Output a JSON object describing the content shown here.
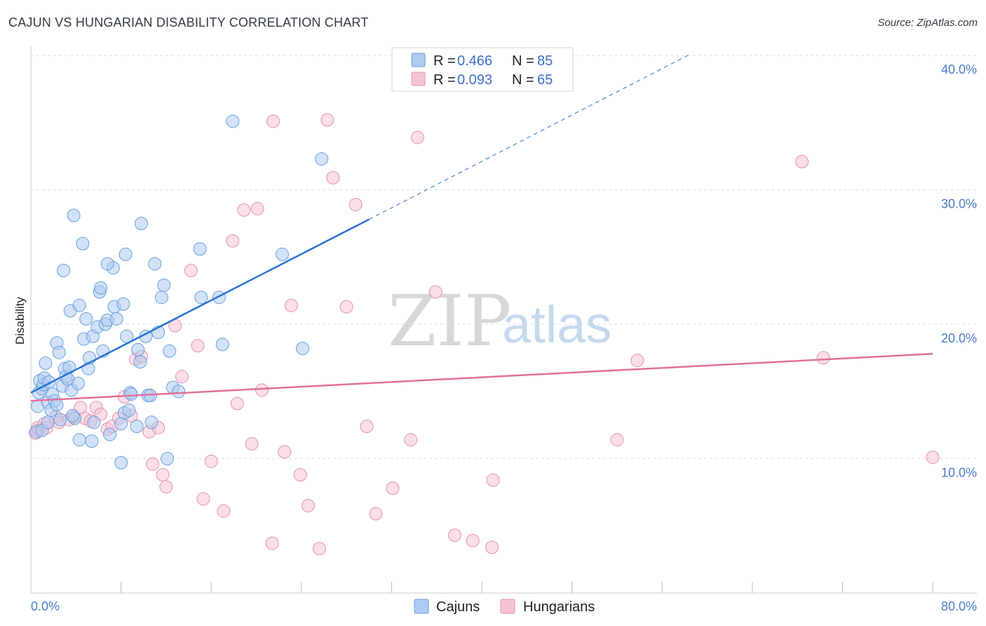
{
  "title": "CAJUN VS HUNGARIAN DISABILITY CORRELATION CHART",
  "source": "Source: ZipAtlas.com",
  "watermark": {
    "zip": "ZIP",
    "atlas": "atlas"
  },
  "colors": {
    "cajun_fill": "#aecbf0",
    "cajun_stroke": "#6b9fdc",
    "cajun_line": "#2a72d4",
    "hungarian_fill": "#f6c3d5",
    "hungarian_stroke": "#e393b2",
    "hungarian_line": "#e0709a",
    "axis_text": "#4a7cc9",
    "grid": "#dddddd"
  },
  "legend": {
    "r_label": "R =",
    "n_label": "N =",
    "cajun_r": "0.466",
    "cajun_n": "85",
    "hungarian_r": "0.093",
    "hungarian_n": "65"
  },
  "bottom_legend": {
    "cajuns": "Cajuns",
    "hungarians": "Hungarians"
  },
  "chart_data": {
    "type": "scatter",
    "title": "CAJUN VS HUNGARIAN DISABILITY CORRELATION CHART",
    "xlabel": "",
    "ylabel": "Disability",
    "xlim": [
      0,
      80
    ],
    "ylim": [
      0,
      40
    ],
    "x_tick_labels": [
      "0.0%",
      "80.0%"
    ],
    "y_ticks": [
      10,
      20,
      30,
      40
    ],
    "y_tick_labels": [
      "10.0%",
      "20.0%",
      "30.0%",
      "40.0%"
    ],
    "series": [
      {
        "name": "Cajuns",
        "r": 0.466,
        "n": 85,
        "trend": {
          "x0": 0,
          "y0": 14.9,
          "x1": 30,
          "y1": 27.8,
          "dashed_to_x": 58.5,
          "dashed_to_y": 40.1
        },
        "points": [
          [
            0.5,
            12.0
          ],
          [
            0.6,
            13.9
          ],
          [
            0.7,
            14.9
          ],
          [
            0.8,
            15.8
          ],
          [
            1.0,
            12.1
          ],
          [
            1.0,
            15.2
          ],
          [
            1.1,
            15.5
          ],
          [
            1.2,
            16.0
          ],
          [
            1.3,
            17.1
          ],
          [
            1.5,
            12.7
          ],
          [
            1.5,
            14.2
          ],
          [
            1.6,
            15.7
          ],
          [
            1.8,
            13.6
          ],
          [
            1.9,
            14.8
          ],
          [
            2.1,
            14.3
          ],
          [
            2.3,
            14.0
          ],
          [
            2.3,
            18.6
          ],
          [
            2.5,
            17.9
          ],
          [
            2.6,
            12.9
          ],
          [
            2.8,
            15.4
          ],
          [
            2.9,
            24.0
          ],
          [
            3.0,
            16.7
          ],
          [
            3.1,
            16.1
          ],
          [
            3.3,
            15.9
          ],
          [
            3.4,
            16.8
          ],
          [
            3.5,
            21.0
          ],
          [
            3.6,
            15.1
          ],
          [
            3.8,
            28.1
          ],
          [
            3.9,
            13.0
          ],
          [
            4.2,
            15.6
          ],
          [
            4.3,
            21.4
          ],
          [
            4.3,
            11.4
          ],
          [
            4.6,
            26.0
          ],
          [
            4.7,
            18.9
          ],
          [
            4.9,
            20.4
          ],
          [
            5.1,
            16.7
          ],
          [
            5.2,
            17.5
          ],
          [
            5.4,
            11.3
          ],
          [
            5.5,
            19.1
          ],
          [
            5.6,
            12.7
          ],
          [
            5.9,
            19.8
          ],
          [
            6.1,
            22.4
          ],
          [
            6.2,
            22.7
          ],
          [
            6.4,
            18.0
          ],
          [
            6.6,
            20.0
          ],
          [
            6.8,
            20.3
          ],
          [
            7.0,
            11.8
          ],
          [
            7.3,
            24.2
          ],
          [
            7.4,
            21.3
          ],
          [
            7.6,
            20.4
          ],
          [
            8.0,
            12.6
          ],
          [
            8.0,
            9.7
          ],
          [
            8.2,
            21.5
          ],
          [
            8.3,
            13.4
          ],
          [
            8.4,
            25.2
          ],
          [
            8.5,
            19.1
          ],
          [
            8.7,
            13.6
          ],
          [
            8.8,
            14.9
          ],
          [
            8.9,
            14.8
          ],
          [
            9.4,
            12.4
          ],
          [
            9.5,
            18.1
          ],
          [
            9.7,
            17.2
          ],
          [
            9.8,
            27.5
          ],
          [
            10.2,
            19.1
          ],
          [
            10.4,
            14.7
          ],
          [
            10.6,
            14.7
          ],
          [
            10.7,
            12.7
          ],
          [
            11.0,
            24.5
          ],
          [
            11.3,
            19.4
          ],
          [
            11.6,
            22.0
          ],
          [
            11.8,
            22.9
          ],
          [
            12.1,
            10.0
          ],
          [
            12.3,
            18.0
          ],
          [
            12.6,
            15.3
          ],
          [
            13.1,
            15.0
          ],
          [
            15.0,
            25.6
          ],
          [
            15.1,
            22.0
          ],
          [
            16.7,
            22.0
          ],
          [
            17.9,
            35.1
          ],
          [
            22.3,
            25.2
          ],
          [
            24.1,
            18.2
          ],
          [
            25.8,
            32.3
          ],
          [
            17.0,
            18.5
          ],
          [
            6.8,
            24.5
          ],
          [
            3.7,
            13.2
          ]
        ]
      },
      {
        "name": "Hungarians",
        "r": 0.093,
        "n": 65,
        "trend": {
          "x0": 0,
          "y0": 14.3,
          "x1": 80,
          "y1": 17.8
        },
        "points": [
          [
            0.4,
            11.9
          ],
          [
            0.6,
            12.3
          ],
          [
            0.7,
            12.1
          ],
          [
            1.2,
            12.6
          ],
          [
            1.4,
            12.3
          ],
          [
            2.2,
            13.1
          ],
          [
            2.5,
            12.7
          ],
          [
            3.4,
            12.9
          ],
          [
            3.8,
            13.1
          ],
          [
            4.4,
            13.8
          ],
          [
            4.8,
            13.0
          ],
          [
            5.3,
            12.8
          ],
          [
            5.8,
            13.8
          ],
          [
            6.2,
            13.3
          ],
          [
            6.8,
            12.2
          ],
          [
            7.2,
            12.4
          ],
          [
            7.8,
            13.0
          ],
          [
            8.3,
            14.6
          ],
          [
            8.9,
            13.2
          ],
          [
            9.3,
            17.4
          ],
          [
            9.8,
            17.6
          ],
          [
            10.5,
            12.0
          ],
          [
            10.8,
            9.6
          ],
          [
            11.3,
            12.3
          ],
          [
            11.7,
            8.8
          ],
          [
            12.0,
            7.9
          ],
          [
            12.8,
            19.9
          ],
          [
            13.4,
            16.1
          ],
          [
            14.2,
            24.0
          ],
          [
            14.8,
            18.4
          ],
          [
            15.3,
            7.0
          ],
          [
            16.0,
            9.8
          ],
          [
            17.1,
            6.1
          ],
          [
            17.9,
            26.2
          ],
          [
            18.3,
            14.1
          ],
          [
            18.9,
            28.5
          ],
          [
            19.6,
            11.1
          ],
          [
            20.1,
            28.6
          ],
          [
            20.5,
            15.1
          ],
          [
            21.4,
            3.7
          ],
          [
            21.5,
            35.1
          ],
          [
            22.5,
            10.5
          ],
          [
            23.1,
            21.4
          ],
          [
            23.9,
            8.8
          ],
          [
            24.6,
            6.5
          ],
          [
            25.6,
            3.3
          ],
          [
            26.3,
            35.2
          ],
          [
            26.8,
            30.9
          ],
          [
            28.0,
            21.3
          ],
          [
            28.8,
            28.9
          ],
          [
            29.8,
            12.4
          ],
          [
            30.6,
            5.9
          ],
          [
            32.1,
            7.8
          ],
          [
            33.7,
            11.4
          ],
          [
            34.3,
            33.9
          ],
          [
            35.9,
            22.4
          ],
          [
            37.6,
            4.3
          ],
          [
            39.2,
            3.9
          ],
          [
            40.9,
            3.4
          ],
          [
            41.0,
            8.4
          ],
          [
            52.0,
            11.4
          ],
          [
            53.8,
            17.3
          ],
          [
            68.4,
            32.1
          ],
          [
            70.3,
            17.5
          ],
          [
            80.0,
            10.1
          ]
        ]
      }
    ]
  }
}
